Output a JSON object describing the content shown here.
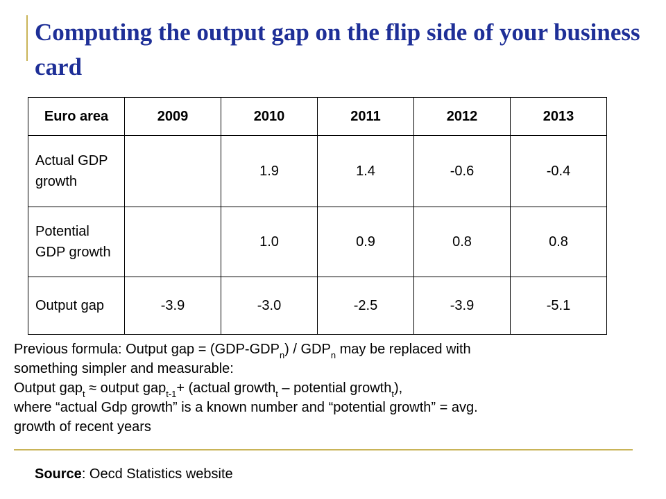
{
  "title": "Computing the output gap on the flip side of your business card",
  "table": {
    "header": [
      "Euro area",
      "2009",
      "2010",
      "2011",
      "2012",
      "2013"
    ],
    "rows": [
      {
        "label": "Actual GDP growth",
        "values": [
          "",
          "1.9",
          "1.4",
          "-0.6",
          "-0.4"
        ]
      },
      {
        "label": "Potential GDP growth",
        "values": [
          "",
          "1.0",
          "0.9",
          "0.8",
          "0.8"
        ]
      },
      {
        "label": "Output gap",
        "values": [
          "-3.9",
          "-3.0",
          "-2.5",
          "-3.9",
          "-5.1"
        ]
      }
    ]
  },
  "formula": {
    "line1_a": "Previous formula: Output gap = (GDP-GDP",
    "line1_sub1": "n",
    "line1_b": ") / GDP",
    "line1_sub2": "n",
    "line1_c": " may be replaced with",
    "line2": "something simpler and measurable:",
    "line3_a": "Output gap",
    "line3_sub1": "t",
    "line3_b": " ≈ output gap",
    "line3_sub2": "t-1",
    "line3_c": "+ (actual growth",
    "line3_sub3": "t",
    "line3_d": " – potential growth",
    "line3_sub4": "t",
    "line3_e": "),",
    "line4": "where “actual Gdp growth” is a known number and “potential growth” = avg.",
    "line5": "growth of recent years"
  },
  "source": {
    "label": "Source",
    "text": ": Oecd Statistics website"
  }
}
